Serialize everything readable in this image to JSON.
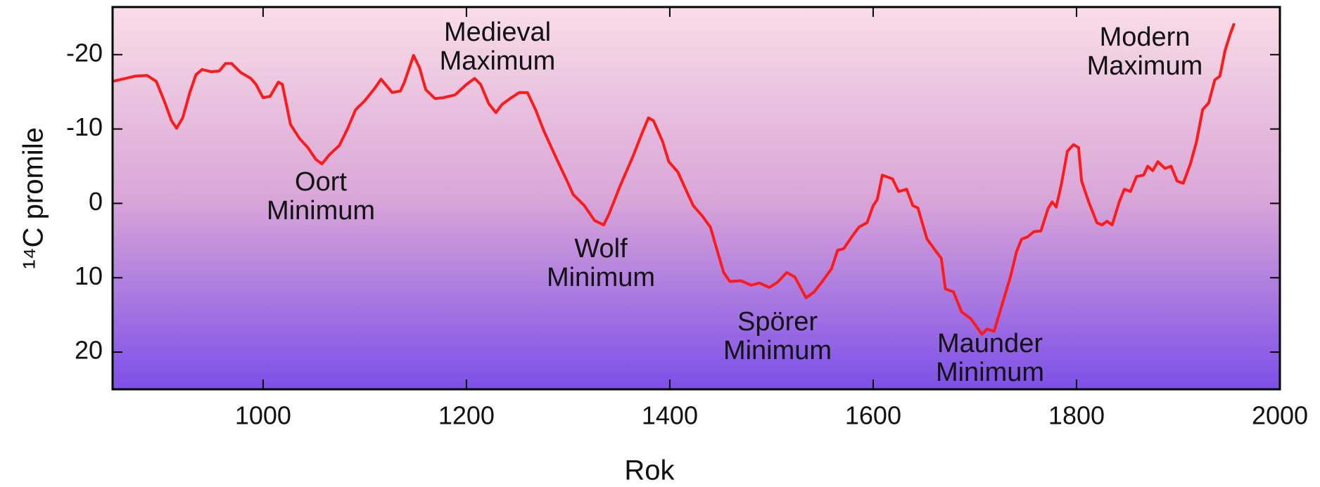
{
  "chart_data": {
    "type": "line",
    "xlabel": "Rok",
    "ylabel": "¹⁴C promile",
    "x": [
      852,
      874,
      886,
      895,
      903,
      910,
      915,
      921,
      928,
      934,
      940,
      949,
      957,
      963,
      969,
      978,
      988,
      993,
      1000,
      1007,
      1015,
      1019,
      1027,
      1036,
      1044,
      1052,
      1058,
      1065,
      1075,
      1083,
      1091,
      1100,
      1110,
      1116,
      1127,
      1135,
      1139,
      1148,
      1154,
      1160,
      1169,
      1177,
      1189,
      1200,
      1208,
      1214,
      1222,
      1229,
      1235,
      1243,
      1252,
      1260,
      1268,
      1276,
      1289,
      1299,
      1305,
      1316,
      1326,
      1335,
      1340,
      1351,
      1364,
      1372,
      1379,
      1384,
      1393,
      1399,
      1408,
      1416,
      1423,
      1432,
      1440,
      1447,
      1453,
      1459,
      1470,
      1480,
      1488,
      1498,
      1506,
      1515,
      1523,
      1534,
      1542,
      1550,
      1559,
      1565,
      1571,
      1580,
      1586,
      1594,
      1600,
      1604,
      1609,
      1619,
      1625,
      1633,
      1639,
      1644,
      1653,
      1661,
      1667,
      1671,
      1679,
      1687,
      1696,
      1707,
      1712,
      1719,
      1727,
      1735,
      1741,
      1746,
      1752,
      1758,
      1765,
      1772,
      1776,
      1780,
      1785,
      1791,
      1797,
      1802,
      1805,
      1812,
      1820,
      1825,
      1830,
      1835,
      1842,
      1847,
      1853,
      1859,
      1866,
      1870,
      1875,
      1880,
      1887,
      1893,
      1899,
      1905,
      1912,
      1918,
      1924,
      1930,
      1936,
      1941,
      1946,
      1951,
      1955
    ],
    "series": [
      {
        "name": "14C",
        "color": "#ff1a1a",
        "values": [
          -16.4,
          -17.1,
          -17.2,
          -16.4,
          -13.7,
          -11.1,
          -10.1,
          -11.5,
          -14.9,
          -17.3,
          -18.0,
          -17.7,
          -17.8,
          -18.8,
          -18.8,
          -17.6,
          -16.8,
          -16.0,
          -14.2,
          -14.4,
          -16.3,
          -16.0,
          -10.6,
          -8.7,
          -7.5,
          -5.9,
          -5.3,
          -6.5,
          -7.8,
          -10.0,
          -12.6,
          -13.8,
          -15.5,
          -16.7,
          -14.9,
          -15.1,
          -16.3,
          -19.9,
          -18.2,
          -15.3,
          -14.1,
          -14.2,
          -14.6,
          -16.0,
          -16.8,
          -16.0,
          -13.4,
          -12.2,
          -13.3,
          -14.1,
          -14.9,
          -14.9,
          -12.6,
          -9.8,
          -5.9,
          -3.0,
          -1.2,
          0.3,
          2.3,
          2.9,
          1.5,
          -2.3,
          -6.4,
          -9.2,
          -11.5,
          -11.1,
          -8.3,
          -5.6,
          -4.2,
          -1.8,
          0.3,
          1.7,
          3.2,
          6.5,
          9.3,
          10.5,
          10.4,
          11.0,
          10.7,
          11.3,
          10.6,
          9.3,
          9.9,
          12.7,
          11.9,
          10.5,
          8.8,
          6.3,
          6.1,
          4.3,
          3.2,
          2.6,
          0.3,
          -0.5,
          -3.8,
          -3.3,
          -1.6,
          -1.9,
          0.3,
          0.6,
          4.8,
          6.3,
          7.4,
          11.5,
          11.9,
          14.6,
          15.5,
          17.6,
          16.9,
          17.2,
          13.5,
          9.9,
          6.5,
          4.8,
          4.5,
          3.8,
          3.7,
          0.7,
          -0.2,
          0.5,
          -2.5,
          -7.0,
          -7.9,
          -7.5,
          -3.0,
          -0.2,
          2.6,
          2.9,
          2.4,
          2.9,
          -0.2,
          -1.9,
          -1.6,
          -3.6,
          -3.8,
          -5.0,
          -4.4,
          -5.6,
          -4.7,
          -5.0,
          -3.0,
          -2.7,
          -5.3,
          -8.3,
          -12.6,
          -13.5,
          -16.6,
          -17.1,
          -20.5,
          -22.7,
          -24.2
        ]
      }
    ],
    "xlim": [
      852,
      2000
    ],
    "xticks": [
      1000,
      1200,
      1400,
      1600,
      1800,
      2000
    ],
    "ylim": [
      -26.4,
      25
    ],
    "yticks": [
      -20,
      -10,
      0,
      10,
      20
    ],
    "y_inverted": true,
    "grid": false,
    "annotations": [
      [
        "Oort",
        "Minimum"
      ],
      [
        "Medieval",
        "Maximum"
      ],
      [
        "Wolf",
        "Minimum"
      ],
      [
        "Spörer",
        "Minimum"
      ],
      [
        "Maunder",
        "Minimum"
      ],
      [
        "Modern",
        "Maximum"
      ]
    ]
  }
}
